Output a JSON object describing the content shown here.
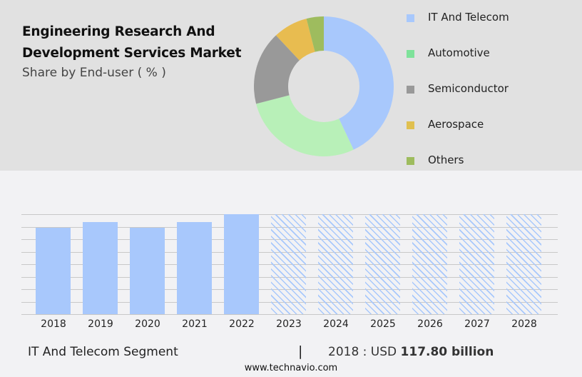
{
  "header": {
    "title_line1": "Engineering Research And",
    "title_line2": "Development Services Market",
    "subtitle": "Share by End-user ( % )"
  },
  "colors": {
    "top_panel_bg": "#e1e1e1",
    "bottom_panel_bg": "#f2f2f4",
    "bar_color": "#a8c8fc"
  },
  "legend": [
    {
      "label": "IT And Telecom",
      "color": "#a8c8fc"
    },
    {
      "label": "Automotive",
      "color": "#7ee29a"
    },
    {
      "label": "Semiconductor",
      "color": "#999999"
    },
    {
      "label": "Aerospace",
      "color": "#e0c050"
    },
    {
      "label": "Others",
      "color": "#9ebc5e"
    }
  ],
  "footer": {
    "segment": "IT And Telecom Segment",
    "separator": "|",
    "value_prefix": "2018 : USD ",
    "value_bold": "117.80 billion",
    "url": "www.technavio.com"
  },
  "chart_data": [
    {
      "type": "pie",
      "title": "Share by End-user ( % )",
      "variant": "donut",
      "categories": [
        "IT And Telecom",
        "Automotive",
        "Semiconductor",
        "Aerospace",
        "Others"
      ],
      "values": [
        43,
        28,
        17,
        8,
        4
      ],
      "colors": [
        "#a8c8fc",
        "#b8f0b8",
        "#999999",
        "#e8bc50",
        "#9ebc5e"
      ],
      "legend_position": "right"
    },
    {
      "type": "bar",
      "title": "IT And Telecom Segment",
      "categories": [
        "2018",
        "2019",
        "2020",
        "2021",
        "2022",
        "2023",
        "2024",
        "2025",
        "2026",
        "2027",
        "2028"
      ],
      "values": [
        117.8,
        126.2,
        117.8,
        126.2,
        136.8,
        null,
        null,
        null,
        null,
        null,
        null
      ],
      "forecast": [
        false,
        false,
        false,
        false,
        false,
        true,
        true,
        true,
        true,
        true,
        true
      ],
      "annotation": "2018 : USD 117.80 billion",
      "xlabel": "",
      "ylabel": "",
      "grid": true,
      "y_ticks_visible": false
    }
  ]
}
